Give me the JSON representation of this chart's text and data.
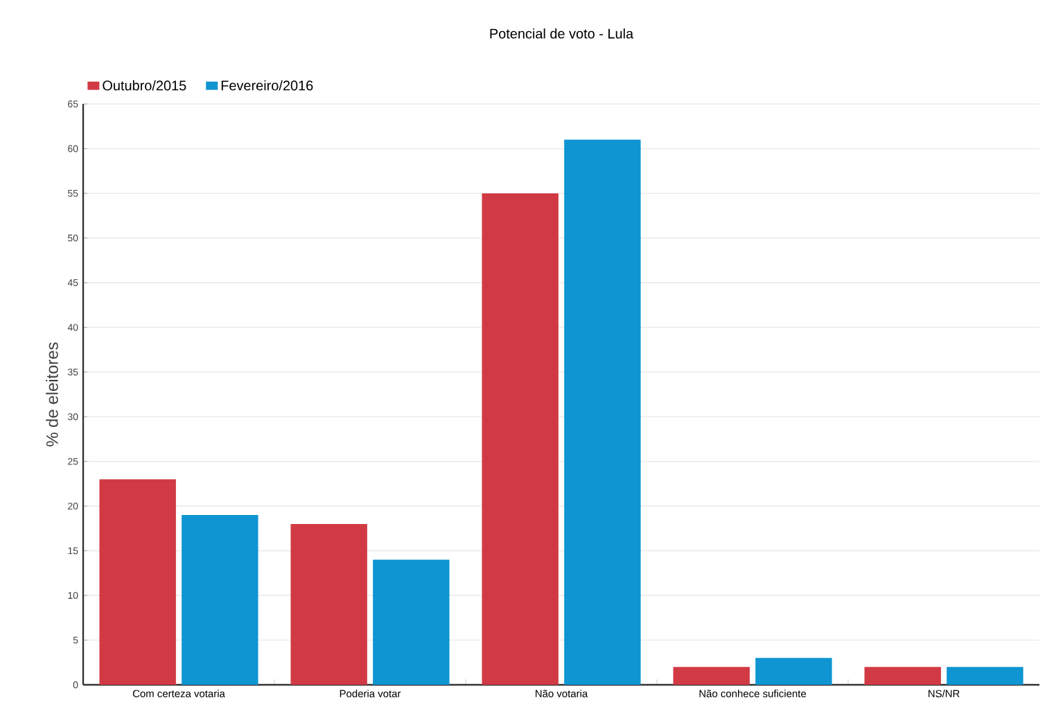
{
  "chart_data": {
    "type": "bar",
    "title": "Potencial de voto - Lula",
    "ylabel": "% de eleitores",
    "categories": [
      "Com certeza votaria",
      "Poderia votar",
      "Não votaria",
      "Não conhece suficiente",
      "NS/NR"
    ],
    "series": [
      {
        "name": "Outubro/2015",
        "color": "#d13a44",
        "values": [
          23,
          18,
          55,
          2,
          2
        ]
      },
      {
        "name": "Fevereiro/2016",
        "color": "#0e95d2",
        "values": [
          19,
          14,
          61,
          3,
          2
        ]
      }
    ],
    "ylim": [
      0,
      65
    ],
    "yticks": [
      0,
      5,
      10,
      15,
      20,
      25,
      30,
      35,
      40,
      45,
      50,
      55,
      60,
      65
    ],
    "grid": "y",
    "legend": "top left"
  }
}
